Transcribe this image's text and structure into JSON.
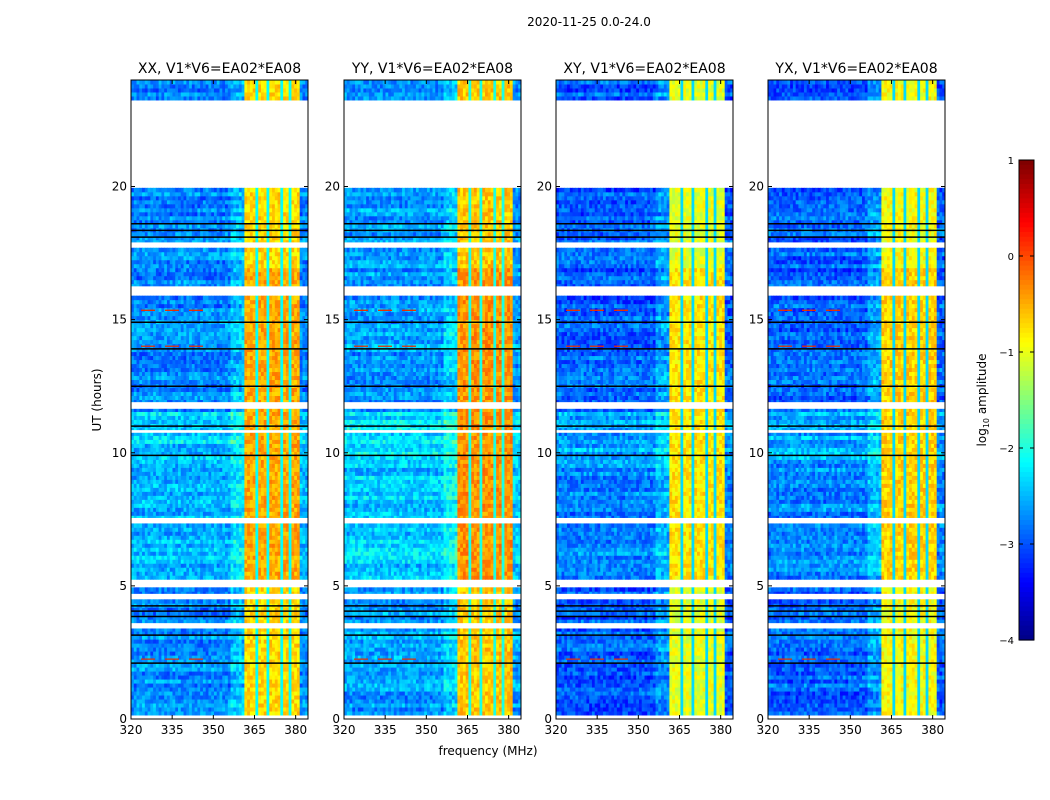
{
  "chart_data": {
    "type": "heatmap",
    "title": "2020-11-25 0.0-24.0",
    "xlabel": "frequency (MHz)",
    "ylabel": "UT (hours)",
    "xlim": [
      320,
      384.5
    ],
    "ylim": [
      0,
      24
    ],
    "xticks": [
      320,
      335,
      350,
      365,
      380
    ],
    "yticks": [
      0,
      5,
      10,
      15,
      20
    ],
    "panels": [
      {
        "title": "XX, V1*V6=EA02*EA08",
        "background_level": -2.7,
        "band_level": -0.7
      },
      {
        "title": "YY, V1*V6=EA02*EA08",
        "background_level": -2.6,
        "band_level": -0.6
      },
      {
        "title": "XY, V1*V6=EA02*EA08",
        "background_level": -2.9,
        "band_level": -1.0
      },
      {
        "title": "YX, V1*V6=EA02*EA08",
        "background_level": -2.9,
        "band_level": -0.9
      }
    ],
    "band_mhz": [
      361,
      381
    ],
    "band_notches_mhz": [
      366,
      370,
      375,
      378
    ],
    "flagged_hours": [
      [
        20.0,
        23.2
      ],
      [
        17.75,
        17.9
      ],
      [
        15.95,
        16.25
      ],
      [
        11.65,
        11.9
      ],
      [
        10.75,
        10.85
      ],
      [
        7.35,
        7.55
      ],
      [
        4.95,
        5.2
      ],
      [
        4.5,
        4.7
      ],
      [
        3.4,
        3.6
      ],
      [
        0.05,
        0.1
      ]
    ],
    "dark_rows_hours": [
      18.6,
      18.35,
      18.1,
      14.9,
      13.9,
      12.5,
      11.0,
      9.9,
      4.25,
      4.05,
      3.85,
      3.15,
      2.1
    ],
    "rfi_rows_hours": [
      15.35,
      14.0,
      2.25
    ],
    "colorbar": {
      "label": "log10 amplitude",
      "label_main": "log",
      "label_sub": "10",
      "label_rest": " amplitude",
      "range": [
        -4,
        1
      ],
      "ticks": [
        "1",
        "0",
        "−1",
        "−2",
        "−3",
        "−4"
      ],
      "tick_values": [
        1,
        0,
        -1,
        -2,
        -3,
        -4
      ]
    }
  }
}
